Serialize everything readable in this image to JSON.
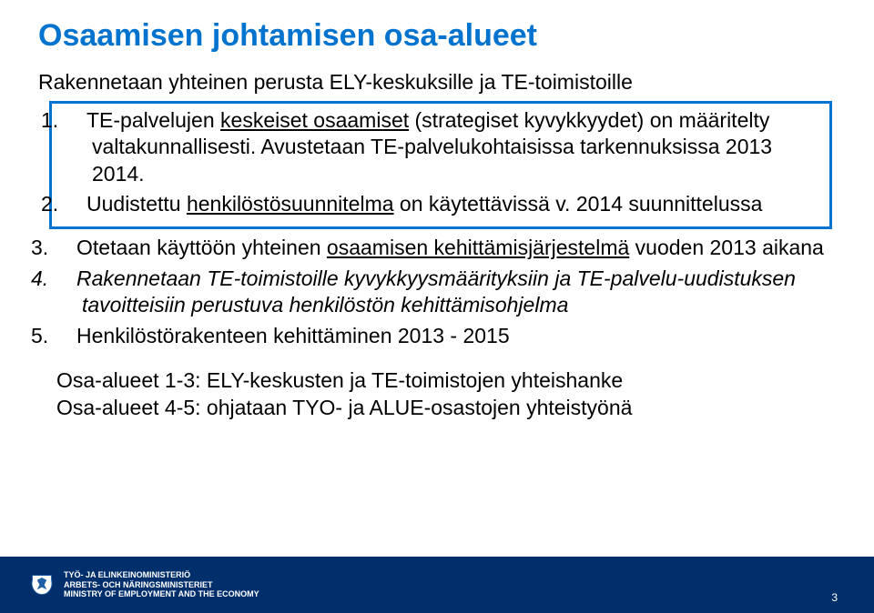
{
  "colors": {
    "title": "#0073cf",
    "body": "#000000",
    "box_border": "#0073cf",
    "footer_bg": "#002f6c",
    "footer_text": "#ffffff",
    "crest_fill": "#1f5fa6"
  },
  "fontsize": {
    "title": 34,
    "body": 23,
    "ministry": 9,
    "pagenum": 12
  },
  "title": "Osaamisen johtamisen osa-alueet",
  "intro": "Rakennetaan yhteinen perusta ELY-keskuksille ja TE-toimistoille",
  "items": [
    {
      "num": "1.",
      "runs": [
        {
          "t": "TE-palvelujen "
        },
        {
          "t": "keskeiset osaamiset",
          "u": true
        },
        {
          "t": " (strategiset kyvykkyydet) on määritelty valtakunnallisesti. Avustetaan TE-palvelukohtaisissa tarkennuksissa 2013 2014."
        }
      ],
      "boxed": true
    },
    {
      "num": "2.",
      "runs": [
        {
          "t": "Uudistettu "
        },
        {
          "t": "henkilöstösuunnitelma",
          "u": true
        },
        {
          "t": " on käytettävissä v. 2014 suunnittelussa"
        }
      ],
      "boxed": true
    },
    {
      "num": "3.",
      "runs": [
        {
          "t": "Otetaan käyttöön yhteinen "
        },
        {
          "t": "osaamisen kehittämisjärjestelmä",
          "u": true
        },
        {
          "t": " vuoden 2013 aikana"
        }
      ]
    },
    {
      "num": "4.",
      "runs": [
        {
          "t": "Rakennetaan TE-toimistoille kyvykkyysmäärityksiin ja TE-palvelu-uudistuksen tavoitteisiin perustuva henkilöstön kehittämisohjelma"
        }
      ],
      "italic": true
    },
    {
      "num": "5.",
      "runs": [
        {
          "t": "Henkilöstörakenteen kehittäminen 2013 - 2015"
        }
      ]
    }
  ],
  "after": [
    "Osa-alueet 1-3: ELY-keskusten ja TE-toimistojen yhteishanke",
    "Osa-alueet 4-5: ohjataan TYO- ja ALUE-osastojen yhteistyönä"
  ],
  "ministry": [
    "TYÖ- JA ELINKEINOMINISTERIÖ",
    "ARBETS- OCH NÄRINGSMINISTERIET",
    "MINISTRY OF EMPLOYMENT AND THE ECONOMY"
  ],
  "page_number": "3"
}
